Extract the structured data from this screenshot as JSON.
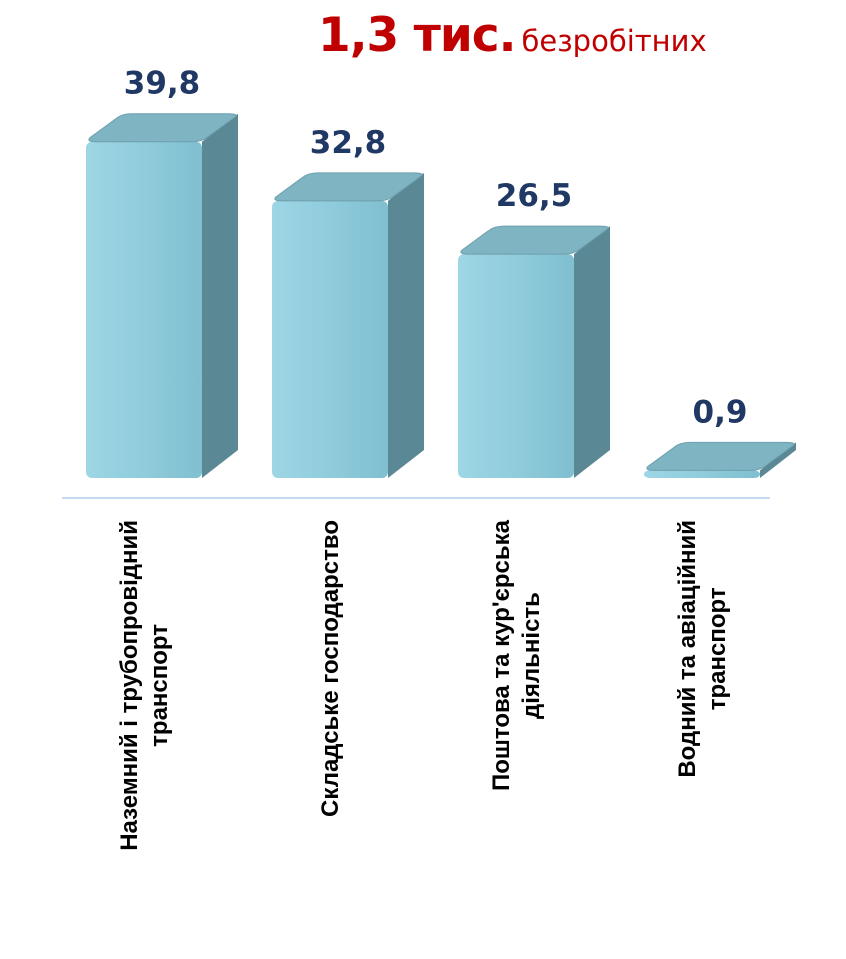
{
  "headline": {
    "count": "1,3 тис.",
    "unit_text": "безробітних"
  },
  "colors": {
    "bar_front": "#8fccdc",
    "bar_top": "#7fb4c2",
    "bar_side": "#5b8895",
    "value_label": "#1f3864",
    "headline": "#c00000",
    "baseline": "#c5d9ee"
  },
  "chart_data": {
    "type": "bar",
    "style": "3d",
    "categories": [
      [
        "Наземний і трубопровідний",
        "транспорт"
      ],
      [
        "Складське господарство"
      ],
      [
        "Поштова та кур'єрська",
        "діяльність"
      ],
      [
        "Водний  та авіаційний",
        "транспорт"
      ]
    ],
    "values": [
      39.8,
      32.8,
      26.5,
      0.9
    ],
    "value_labels": [
      "39,8",
      "32,8",
      "26,5",
      "0,9"
    ],
    "ylim": [
      0,
      40
    ],
    "grid": false,
    "legend": "none"
  }
}
